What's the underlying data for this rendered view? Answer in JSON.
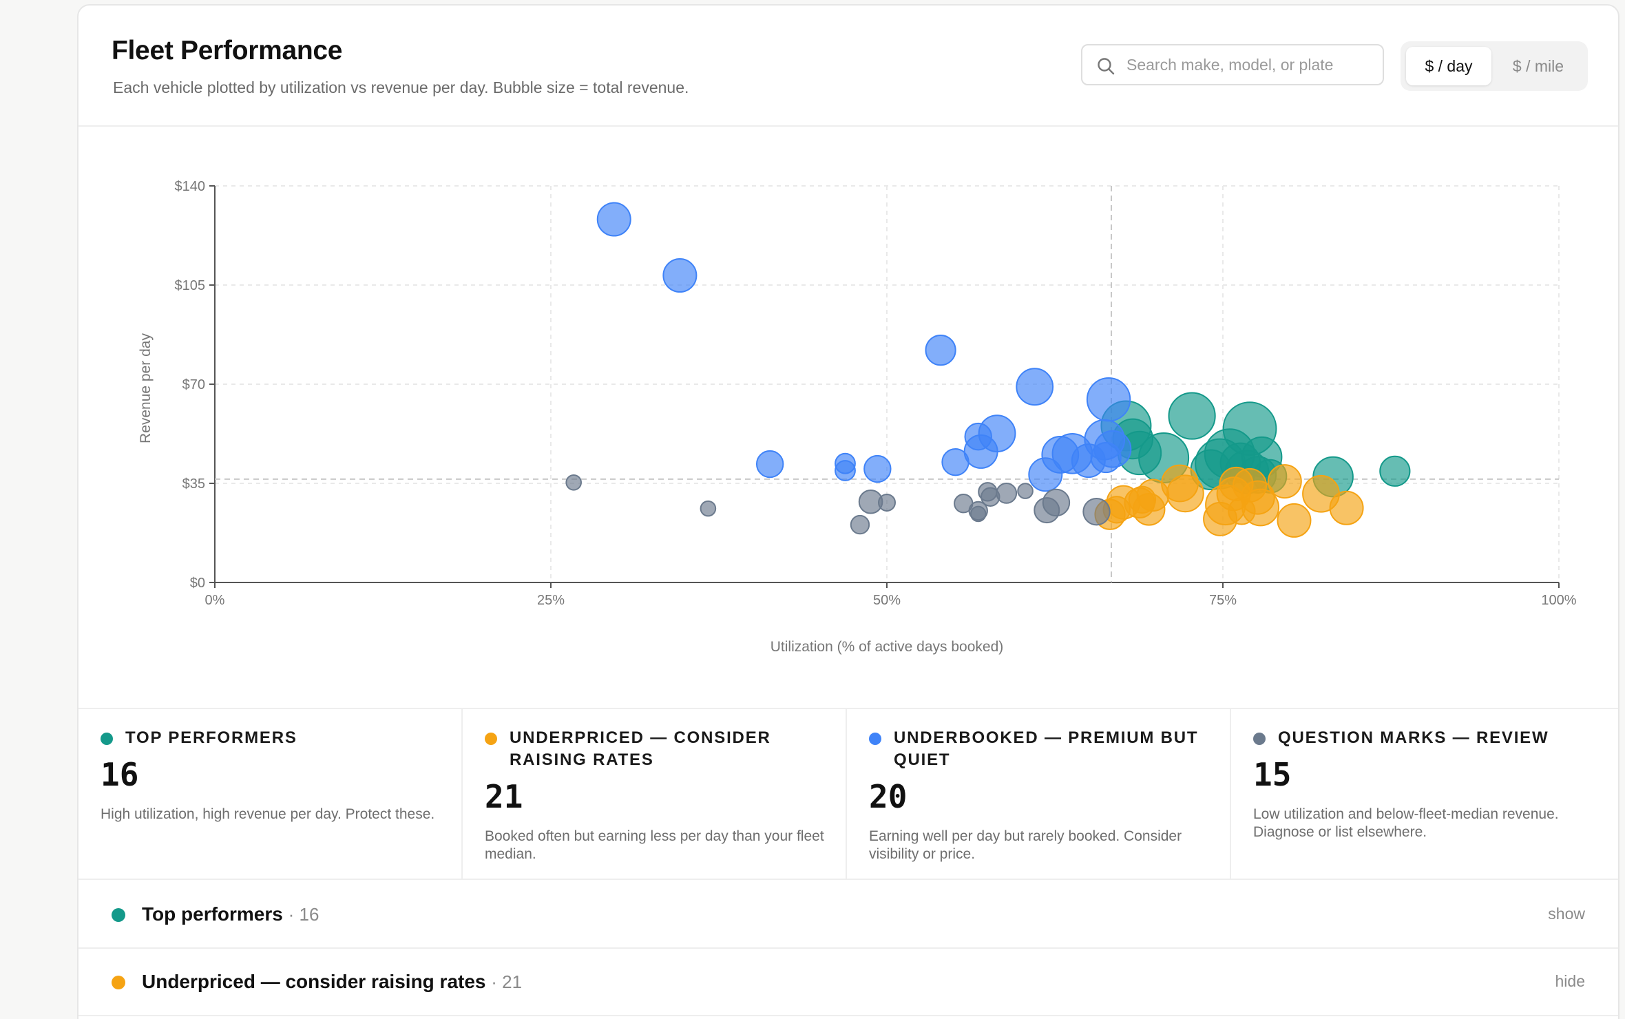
{
  "header": {
    "title": "Fleet Performance",
    "subtitle": "Each vehicle plotted by utilization vs revenue per day. Bubble size = total revenue."
  },
  "search": {
    "placeholder": "Search make, model, or plate",
    "value": ""
  },
  "toggle": {
    "options": [
      "$ / day",
      "$ / mile"
    ],
    "selected": "$ / day"
  },
  "colors": {
    "top": "#14998a",
    "underpriced": "#f5a313",
    "underbooked": "#3f83f8",
    "question": "#6b7a8d"
  },
  "chart_data": {
    "type": "scatter",
    "title": "",
    "xlabel": "Utilization (% of active days booked)",
    "ylabel": "Revenue per day",
    "xlim": [
      0,
      100
    ],
    "ylim": [
      0,
      140
    ],
    "x_ticks": [
      "0%",
      "25%",
      "50%",
      "75%",
      "100%"
    ],
    "x_tick_values": [
      0,
      25,
      50,
      75,
      100
    ],
    "y_ticks": [
      "$0",
      "$35",
      "$70",
      "$105",
      "$140"
    ],
    "y_tick_values": [
      0,
      35,
      70,
      105,
      140
    ],
    "grid": true,
    "median_x": 66.7,
    "median_y": 36.5,
    "series": [
      {
        "name": "Top performers",
        "color": "#14998a",
        "points": [
          {
            "x": 67.8,
            "y": 55.3,
            "size": 3.0
          },
          {
            "x": 68.3,
            "y": 50.7,
            "size": 2.4
          },
          {
            "x": 68.8,
            "y": 45.7,
            "size": 2.6
          },
          {
            "x": 70.6,
            "y": 44.0,
            "size": 3.0
          },
          {
            "x": 72.7,
            "y": 58.8,
            "size": 2.8
          },
          {
            "x": 74.1,
            "y": 39.8,
            "size": 2.4
          },
          {
            "x": 74.8,
            "y": 41.9,
            "size": 3.0
          },
          {
            "x": 75.5,
            "y": 45.4,
            "size": 3.0
          },
          {
            "x": 76.3,
            "y": 42.2,
            "size": 2.4
          },
          {
            "x": 76.8,
            "y": 39.0,
            "size": 2.6
          },
          {
            "x": 77.0,
            "y": 54.3,
            "size": 3.2
          },
          {
            "x": 77.9,
            "y": 44.3,
            "size": 2.4
          },
          {
            "x": 77.6,
            "y": 38.0,
            "size": 2.2
          },
          {
            "x": 78.5,
            "y": 37.5,
            "size": 2.0
          },
          {
            "x": 83.2,
            "y": 37.3,
            "size": 2.4
          },
          {
            "x": 87.8,
            "y": 39.3,
            "size": 1.8
          }
        ]
      },
      {
        "name": "Underpriced — consider raising rates",
        "color": "#f5a313",
        "points": [
          {
            "x": 66.6,
            "y": 24.0,
            "size": 1.8
          },
          {
            "x": 67.1,
            "y": 25.7,
            "size": 1.6
          },
          {
            "x": 67.6,
            "y": 28.3,
            "size": 2.0
          },
          {
            "x": 68.8,
            "y": 28.1,
            "size": 1.8
          },
          {
            "x": 69.0,
            "y": 29.2,
            "size": 1.6
          },
          {
            "x": 69.5,
            "y": 25.8,
            "size": 1.9
          },
          {
            "x": 69.8,
            "y": 30.8,
            "size": 1.9
          },
          {
            "x": 71.8,
            "y": 35.0,
            "size": 2.2
          },
          {
            "x": 72.2,
            "y": 31.4,
            "size": 2.2
          },
          {
            "x": 74.8,
            "y": 22.4,
            "size": 2.0
          },
          {
            "x": 75.2,
            "y": 27.4,
            "size": 2.4
          },
          {
            "x": 75.8,
            "y": 31.3,
            "size": 2.0
          },
          {
            "x": 76.0,
            "y": 34.8,
            "size": 2.0
          },
          {
            "x": 77.0,
            "y": 34.3,
            "size": 2.0
          },
          {
            "x": 77.6,
            "y": 30.0,
            "size": 2.0
          },
          {
            "x": 77.8,
            "y": 26.5,
            "size": 2.2
          },
          {
            "x": 79.6,
            "y": 35.7,
            "size": 2.0
          },
          {
            "x": 80.3,
            "y": 21.9,
            "size": 2.0
          },
          {
            "x": 82.3,
            "y": 31.3,
            "size": 2.2
          },
          {
            "x": 84.2,
            "y": 26.3,
            "size": 2.0
          },
          {
            "x": 76.4,
            "y": 25.2,
            "size": 1.6
          }
        ]
      },
      {
        "name": "Underbooked — premium but quiet",
        "color": "#3f83f8",
        "points": [
          {
            "x": 29.7,
            "y": 128.2,
            "size": 2.0
          },
          {
            "x": 34.6,
            "y": 108.4,
            "size": 2.0
          },
          {
            "x": 41.3,
            "y": 41.8,
            "size": 1.6
          },
          {
            "x": 46.9,
            "y": 42.0,
            "size": 1.2
          },
          {
            "x": 46.9,
            "y": 39.5,
            "size": 1.2
          },
          {
            "x": 49.3,
            "y": 40.1,
            "size": 1.6
          },
          {
            "x": 54.0,
            "y": 82.0,
            "size": 1.8
          },
          {
            "x": 55.1,
            "y": 42.5,
            "size": 1.6
          },
          {
            "x": 56.8,
            "y": 51.5,
            "size": 1.6
          },
          {
            "x": 57.0,
            "y": 46.2,
            "size": 2.0
          },
          {
            "x": 58.2,
            "y": 52.6,
            "size": 2.2
          },
          {
            "x": 61.0,
            "y": 69.1,
            "size": 2.2
          },
          {
            "x": 61.8,
            "y": 38.1,
            "size": 2.0
          },
          {
            "x": 62.9,
            "y": 45.1,
            "size": 2.2
          },
          {
            "x": 63.8,
            "y": 45.5,
            "size": 2.4
          },
          {
            "x": 65.0,
            "y": 43.0,
            "size": 2.0
          },
          {
            "x": 66.2,
            "y": 50.4,
            "size": 2.4
          },
          {
            "x": 66.3,
            "y": 44.1,
            "size": 1.8
          },
          {
            "x": 66.8,
            "y": 47.1,
            "size": 2.2
          },
          {
            "x": 66.5,
            "y": 64.6,
            "size": 2.6
          }
        ]
      },
      {
        "name": "Question marks — review",
        "color": "#6b7a8d",
        "points": [
          {
            "x": 26.7,
            "y": 35.3,
            "size": 0.9
          },
          {
            "x": 36.7,
            "y": 26.1,
            "size": 0.9
          },
          {
            "x": 48.0,
            "y": 20.4,
            "size": 1.1
          },
          {
            "x": 48.8,
            "y": 28.5,
            "size": 1.4
          },
          {
            "x": 50.0,
            "y": 28.2,
            "size": 1.0
          },
          {
            "x": 55.7,
            "y": 27.9,
            "size": 1.1
          },
          {
            "x": 56.8,
            "y": 25.3,
            "size": 1.1
          },
          {
            "x": 57.5,
            "y": 32.0,
            "size": 1.1
          },
          {
            "x": 57.7,
            "y": 30.2,
            "size": 1.1
          },
          {
            "x": 58.9,
            "y": 31.5,
            "size": 1.2
          },
          {
            "x": 60.3,
            "y": 32.3,
            "size": 0.9
          },
          {
            "x": 61.9,
            "y": 25.5,
            "size": 1.5
          },
          {
            "x": 62.6,
            "y": 28.2,
            "size": 1.6
          },
          {
            "x": 65.6,
            "y": 25.0,
            "size": 1.6
          },
          {
            "x": 56.8,
            "y": 24.2,
            "size": 0.9
          }
        ]
      }
    ]
  },
  "quadrants": [
    {
      "key": "top",
      "name": "TOP PERFORMERS",
      "count": "16",
      "desc": "High utilization, high revenue per day. Protect these."
    },
    {
      "key": "underpriced",
      "name": "UNDERPRICED — CONSIDER RAISING RATES",
      "count": "21",
      "desc": "Booked often but earning less per day than your fleet median."
    },
    {
      "key": "underbooked",
      "name": "UNDERBOOKED — PREMIUM BUT QUIET",
      "count": "20",
      "desc": "Earning well per day but rarely booked. Consider visibility or price."
    },
    {
      "key": "question",
      "name": "QUESTION MARKS — REVIEW",
      "count": "15",
      "desc": "Low utilization and below-fleet-median revenue. Diagnose or list elsewhere."
    }
  ],
  "groups": [
    {
      "label": "Top performers",
      "count": "· 16",
      "action": "show"
    },
    {
      "label": "Underpriced — consider raising rates",
      "count": "· 21",
      "action": "hide"
    }
  ]
}
